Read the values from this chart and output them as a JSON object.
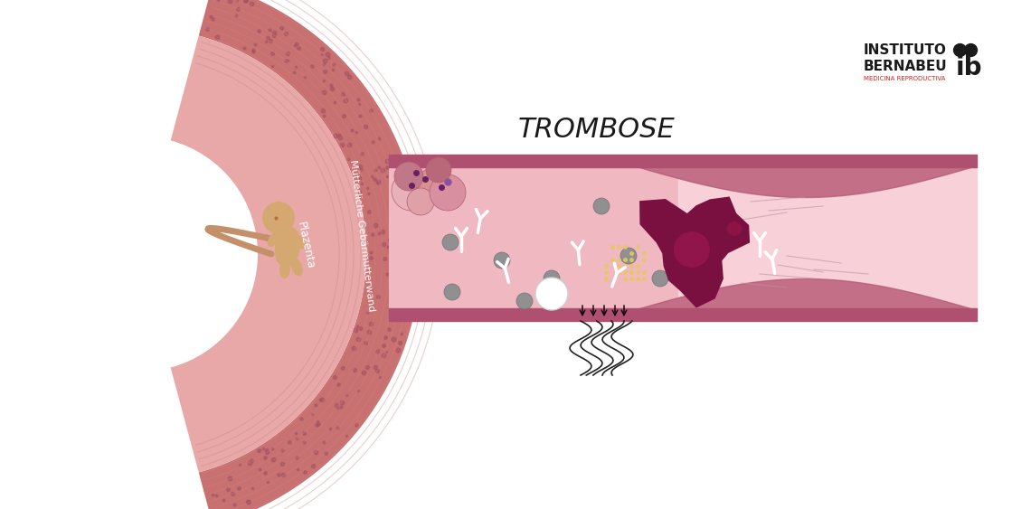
{
  "bg_color": "#ffffff",
  "uterus_outer_color": "#c97070",
  "uterus_plazenta_color": "#e8a8a8",
  "vessel_bg_color": "#f0b8c0",
  "vessel_border_color": "#b05070",
  "vessel_highlight_color": "#f8d0d8",
  "smoke_color": "#222222",
  "trombose_label": "TROMBOSE",
  "label_muetterliche": "Mütterliche Gebärmutterwand",
  "label_plazenta": "Plazenta",
  "instituto_text1": "INSTITUTO",
  "instituto_text2": "BERNABEU",
  "instituto_text3": "MEDICINA REPRODUCTIVA",
  "instituto_color": "#1a1a1a",
  "instituto_red": "#cc2222"
}
